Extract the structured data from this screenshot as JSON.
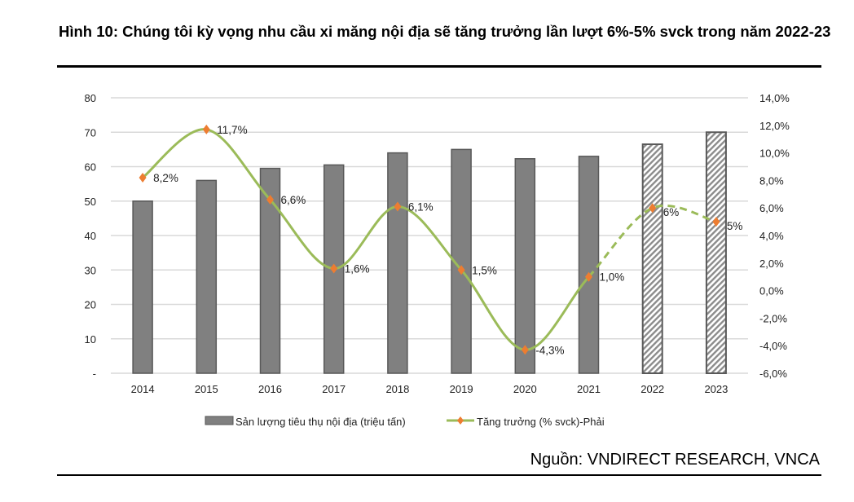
{
  "title": "Hình 10: Chúng tôi kỳ vọng nhu cầu xi măng nội địa sẽ tăng trưởng lần lượt 6%-5% svck trong năm 2022-23",
  "source": "Nguồn: VNDIRECT RESEARCH, VNCA",
  "chart_data": {
    "type": "bar+line",
    "categories": [
      "2014",
      "2015",
      "2016",
      "2017",
      "2018",
      "2019",
      "2020",
      "2021",
      "2022",
      "2023"
    ],
    "left_axis": {
      "ylim": [
        0,
        80
      ],
      "ticks": [
        "-",
        "10",
        "20",
        "30",
        "40",
        "50",
        "60",
        "70",
        "80"
      ]
    },
    "right_axis": {
      "ylim": [
        -6,
        14
      ],
      "ticks": [
        "-6,0%",
        "-4,0%",
        "-2,0%",
        "0,0%",
        "2,0%",
        "4,0%",
        "6,0%",
        "8,0%",
        "10,0%",
        "12,0%",
        "14,0%"
      ]
    },
    "grid": true,
    "legend_position": "bottom",
    "series": [
      {
        "name": "Sản lượng tiêu thụ nội địa (triệu tấn)",
        "type": "bar",
        "axis": "left",
        "color": "#808080",
        "values": [
          50,
          56,
          59.5,
          60.5,
          64,
          65,
          62.3,
          63,
          66.5,
          70
        ],
        "forecast_from": "2022"
      },
      {
        "name": "Tăng trưởng (% svck)-Phải",
        "type": "line",
        "axis": "right",
        "color": "#9bbb59",
        "marker_color": "#ed7d31",
        "values": [
          8.2,
          11.7,
          6.6,
          1.6,
          6.1,
          1.5,
          -4.3,
          1.0,
          6,
          5
        ],
        "labels": [
          "8,2%",
          "11,7%",
          "6,6%",
          "1,6%",
          "6,1%",
          "1,5%",
          "-4,3%",
          "1,0%",
          "6%",
          "5%"
        ],
        "dashed_from": "2021"
      }
    ]
  }
}
